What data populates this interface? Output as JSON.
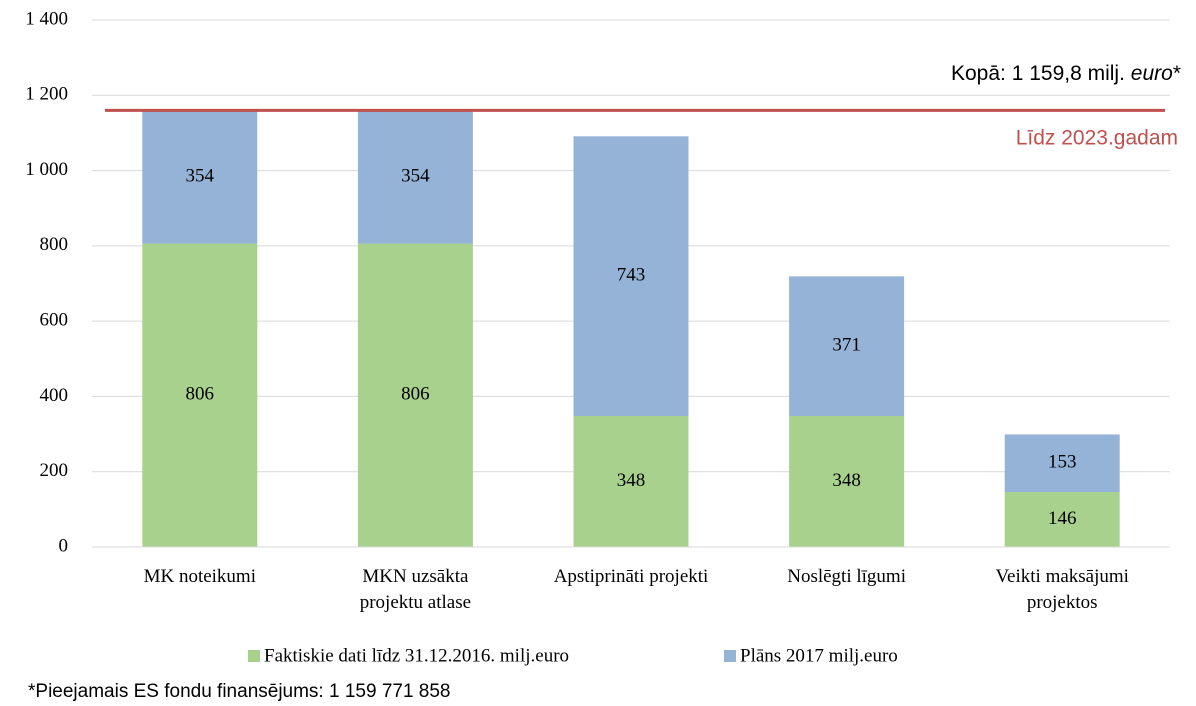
{
  "chart_data": {
    "type": "stacked_bar",
    "categories": [
      "MK noteikumi",
      "MKN uzsākta\nprojektu atlase",
      "Apstiprināti projekti",
      "Noslēgti līgumi",
      "Veikti maksājumi\nprojektos"
    ],
    "series": [
      {
        "name": "Faktiskie dati līdz 31.12.2016. milj.euro",
        "color": "#a9d18e",
        "values": [
          806,
          806,
          348,
          348,
          146
        ]
      },
      {
        "name": "Plāns 2017 milj.euro",
        "color": "#95b3d7",
        "values": [
          354,
          354,
          743,
          371,
          153
        ]
      }
    ],
    "ylim": [
      0,
      1400
    ],
    "yticks": [
      0,
      200,
      400,
      600,
      800,
      {
        "value": 1000,
        "label": "1 000"
      },
      {
        "value": 1200,
        "label": "1 200"
      },
      {
        "value": 1400,
        "label": "1 400"
      }
    ],
    "grid": true,
    "legend": "bottom",
    "reference_line": {
      "value": 1159.8,
      "color": "#c0504d",
      "label": "Līdz 2023.gadam"
    },
    "annotation": {
      "text": "Kopā: 1 159,8 milj. ",
      "italic": "euro",
      "suffix": "*"
    },
    "footnote": "*Pieejamais ES fondu finansējums: 1 159 771 858"
  }
}
